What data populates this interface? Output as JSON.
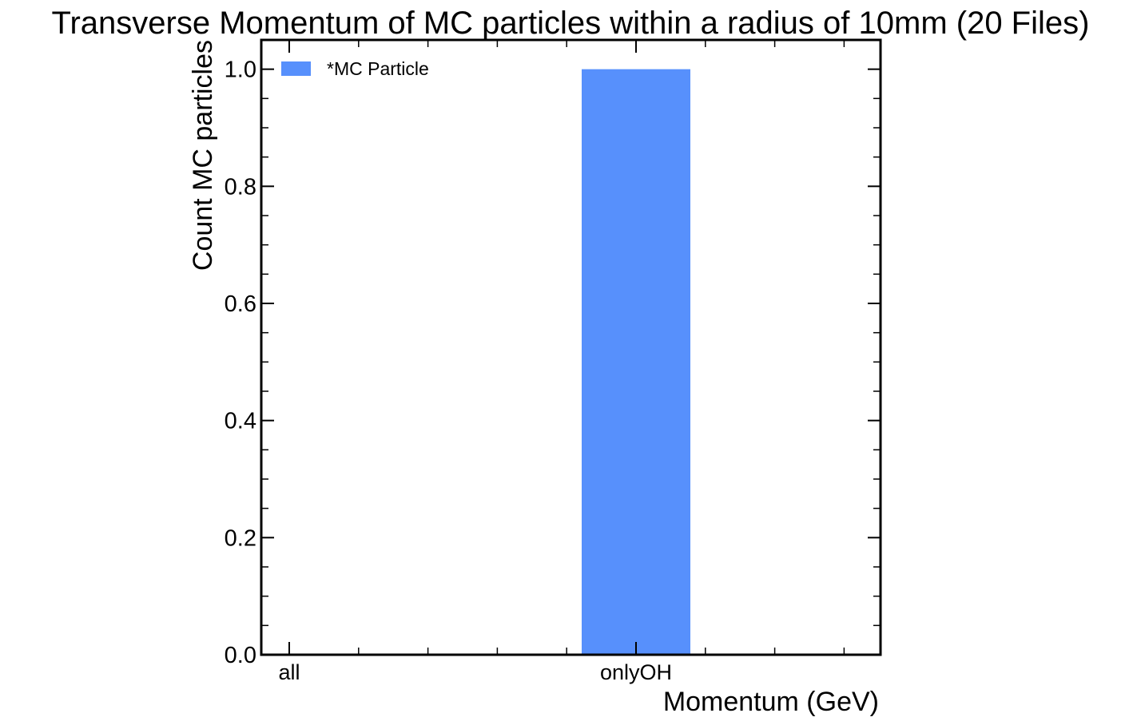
{
  "chart_data": {
    "type": "bar",
    "title": "Transverse Momentum of MC particles within a radius of 10mm (20 Files)",
    "xlabel": "Momentum (GeV)",
    "ylabel": "Count MC particles",
    "categories": [
      "all",
      "onlyOH"
    ],
    "series": [
      {
        "name": "*MC Particle",
        "color": "#5790fc",
        "values": [
          0,
          1.0
        ]
      }
    ],
    "ylim": [
      0,
      1.05
    ],
    "yticks": [
      "0.0",
      "0.2",
      "0.4",
      "0.6",
      "0.8",
      "1.0"
    ],
    "ytick_values": [
      0.0,
      0.2,
      0.4,
      0.6,
      0.8,
      1.0
    ],
    "grid": false,
    "legend": "top-left"
  }
}
